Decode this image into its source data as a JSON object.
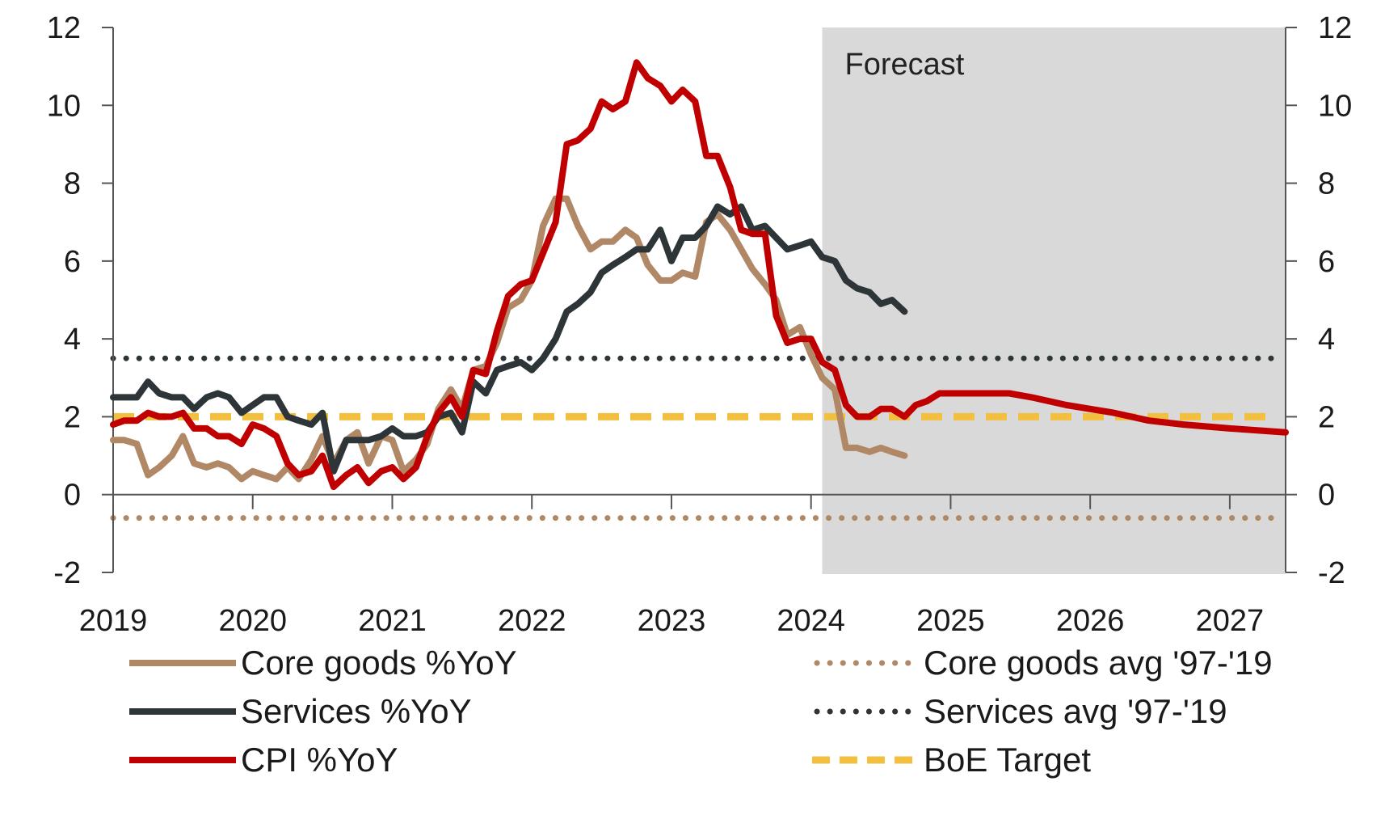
{
  "chart_data": {
    "type": "line",
    "annotation": "Forecast",
    "forecast_start": 2024.08,
    "y_left": {
      "min": -2,
      "max": 12,
      "ticks": [
        -2,
        0,
        2,
        4,
        6,
        8,
        10,
        12
      ]
    },
    "y_right": {
      "min": -2,
      "max": 12,
      "ticks": [
        -2,
        0,
        2,
        4,
        6,
        8,
        10,
        12
      ]
    },
    "x": {
      "min": 2019,
      "max": 2027.4,
      "ticks": [
        2019,
        2020,
        2021,
        2022,
        2023,
        2024,
        2025,
        2026,
        2027
      ]
    },
    "colors": {
      "core_goods": "#b08866",
      "services": "#2e3539",
      "cpi": "#c00000",
      "boe_target": "#f2bf3f",
      "forecast_shade": "#d9d9d9"
    },
    "series": [
      {
        "name": "Core goods %YoY",
        "style": "solid",
        "color": "#b08866",
        "points": [
          [
            2019.0,
            1.4
          ],
          [
            2019.08,
            1.4
          ],
          [
            2019.17,
            1.3
          ],
          [
            2019.25,
            0.5
          ],
          [
            2019.33,
            0.7
          ],
          [
            2019.42,
            1.0
          ],
          [
            2019.5,
            1.5
          ],
          [
            2019.58,
            0.8
          ],
          [
            2019.67,
            0.7
          ],
          [
            2019.75,
            0.8
          ],
          [
            2019.83,
            0.7
          ],
          [
            2019.92,
            0.4
          ],
          [
            2020.0,
            0.6
          ],
          [
            2020.08,
            0.5
          ],
          [
            2020.17,
            0.4
          ],
          [
            2020.25,
            0.7
          ],
          [
            2020.33,
            0.4
          ],
          [
            2020.42,
            0.9
          ],
          [
            2020.5,
            1.5
          ],
          [
            2020.58,
            0.8
          ],
          [
            2020.67,
            1.4
          ],
          [
            2020.75,
            1.6
          ],
          [
            2020.83,
            0.8
          ],
          [
            2020.92,
            1.5
          ],
          [
            2021.0,
            1.4
          ],
          [
            2021.08,
            0.6
          ],
          [
            2021.17,
            0.9
          ],
          [
            2021.25,
            1.3
          ],
          [
            2021.33,
            2.2
          ],
          [
            2021.42,
            2.7
          ],
          [
            2021.5,
            2.2
          ],
          [
            2021.58,
            3.2
          ],
          [
            2021.67,
            3.3
          ],
          [
            2021.75,
            3.9
          ],
          [
            2021.83,
            4.8
          ],
          [
            2021.92,
            5.0
          ],
          [
            2022.0,
            5.5
          ],
          [
            2022.08,
            6.9
          ],
          [
            2022.17,
            7.6
          ],
          [
            2022.25,
            7.6
          ],
          [
            2022.33,
            6.9
          ],
          [
            2022.42,
            6.3
          ],
          [
            2022.5,
            6.5
          ],
          [
            2022.58,
            6.5
          ],
          [
            2022.67,
            6.8
          ],
          [
            2022.75,
            6.6
          ],
          [
            2022.83,
            5.9
          ],
          [
            2022.92,
            5.5
          ],
          [
            2023.0,
            5.5
          ],
          [
            2023.08,
            5.7
          ],
          [
            2023.17,
            5.6
          ],
          [
            2023.25,
            7.0
          ],
          [
            2023.33,
            7.2
          ],
          [
            2023.42,
            6.8
          ],
          [
            2023.5,
            6.3
          ],
          [
            2023.58,
            5.8
          ],
          [
            2023.67,
            5.4
          ],
          [
            2023.75,
            5.0
          ],
          [
            2023.83,
            4.1
          ],
          [
            2023.92,
            4.3
          ],
          [
            2024.0,
            3.6
          ],
          [
            2024.08,
            3.0
          ],
          [
            2024.17,
            2.7
          ],
          [
            2024.25,
            1.2
          ],
          [
            2024.33,
            1.2
          ],
          [
            2024.42,
            1.1
          ],
          [
            2024.5,
            1.2
          ],
          [
            2024.58,
            1.1
          ],
          [
            2024.67,
            1.0
          ]
        ]
      },
      {
        "name": "Services %YoY",
        "style": "solid",
        "color": "#2e3539",
        "points": [
          [
            2019.0,
            2.5
          ],
          [
            2019.08,
            2.5
          ],
          [
            2019.17,
            2.5
          ],
          [
            2019.25,
            2.9
          ],
          [
            2019.33,
            2.6
          ],
          [
            2019.42,
            2.5
          ],
          [
            2019.5,
            2.5
          ],
          [
            2019.58,
            2.2
          ],
          [
            2019.67,
            2.5
          ],
          [
            2019.75,
            2.6
          ],
          [
            2019.83,
            2.5
          ],
          [
            2019.92,
            2.1
          ],
          [
            2020.0,
            2.3
          ],
          [
            2020.08,
            2.5
          ],
          [
            2020.17,
            2.5
          ],
          [
            2020.25,
            2.0
          ],
          [
            2020.33,
            1.9
          ],
          [
            2020.42,
            1.8
          ],
          [
            2020.5,
            2.1
          ],
          [
            2020.58,
            0.6
          ],
          [
            2020.67,
            1.4
          ],
          [
            2020.75,
            1.4
          ],
          [
            2020.83,
            1.4
          ],
          [
            2020.92,
            1.5
          ],
          [
            2021.0,
            1.7
          ],
          [
            2021.08,
            1.5
          ],
          [
            2021.17,
            1.5
          ],
          [
            2021.25,
            1.6
          ],
          [
            2021.33,
            2.0
          ],
          [
            2021.42,
            2.1
          ],
          [
            2021.5,
            1.6
          ],
          [
            2021.58,
            2.9
          ],
          [
            2021.67,
            2.6
          ],
          [
            2021.75,
            3.2
          ],
          [
            2021.83,
            3.3
          ],
          [
            2021.92,
            3.4
          ],
          [
            2022.0,
            3.2
          ],
          [
            2022.08,
            3.5
          ],
          [
            2022.17,
            4.0
          ],
          [
            2022.25,
            4.7
          ],
          [
            2022.33,
            4.9
          ],
          [
            2022.42,
            5.2
          ],
          [
            2022.5,
            5.7
          ],
          [
            2022.58,
            5.9
          ],
          [
            2022.67,
            6.1
          ],
          [
            2022.75,
            6.3
          ],
          [
            2022.83,
            6.3
          ],
          [
            2022.92,
            6.8
          ],
          [
            2023.0,
            6.0
          ],
          [
            2023.08,
            6.6
          ],
          [
            2023.17,
            6.6
          ],
          [
            2023.25,
            6.9
          ],
          [
            2023.33,
            7.4
          ],
          [
            2023.42,
            7.2
          ],
          [
            2023.5,
            7.4
          ],
          [
            2023.58,
            6.8
          ],
          [
            2023.67,
            6.9
          ],
          [
            2023.75,
            6.6
          ],
          [
            2023.83,
            6.3
          ],
          [
            2023.92,
            6.4
          ],
          [
            2024.0,
            6.5
          ],
          [
            2024.08,
            6.1
          ],
          [
            2024.17,
            6.0
          ],
          [
            2024.25,
            5.5
          ],
          [
            2024.33,
            5.3
          ],
          [
            2024.42,
            5.2
          ],
          [
            2024.5,
            4.9
          ],
          [
            2024.58,
            5.0
          ],
          [
            2024.67,
            4.7
          ]
        ]
      },
      {
        "name": "CPI %YoY",
        "style": "solid",
        "color": "#c00000",
        "points": [
          [
            2019.0,
            1.8
          ],
          [
            2019.08,
            1.9
          ],
          [
            2019.17,
            1.9
          ],
          [
            2019.25,
            2.1
          ],
          [
            2019.33,
            2.0
          ],
          [
            2019.42,
            2.0
          ],
          [
            2019.5,
            2.1
          ],
          [
            2019.58,
            1.7
          ],
          [
            2019.67,
            1.7
          ],
          [
            2019.75,
            1.5
          ],
          [
            2019.83,
            1.5
          ],
          [
            2019.92,
            1.3
          ],
          [
            2020.0,
            1.8
          ],
          [
            2020.08,
            1.7
          ],
          [
            2020.17,
            1.5
          ],
          [
            2020.25,
            0.8
          ],
          [
            2020.33,
            0.5
          ],
          [
            2020.42,
            0.6
          ],
          [
            2020.5,
            1.0
          ],
          [
            2020.58,
            0.2
          ],
          [
            2020.67,
            0.5
          ],
          [
            2020.75,
            0.7
          ],
          [
            2020.83,
            0.3
          ],
          [
            2020.92,
            0.6
          ],
          [
            2021.0,
            0.7
          ],
          [
            2021.08,
            0.4
          ],
          [
            2021.17,
            0.7
          ],
          [
            2021.25,
            1.5
          ],
          [
            2021.33,
            2.1
          ],
          [
            2021.42,
            2.5
          ],
          [
            2021.5,
            2.0
          ],
          [
            2021.58,
            3.2
          ],
          [
            2021.67,
            3.1
          ],
          [
            2021.75,
            4.2
          ],
          [
            2021.83,
            5.1
          ],
          [
            2021.92,
            5.4
          ],
          [
            2022.0,
            5.5
          ],
          [
            2022.08,
            6.2
          ],
          [
            2022.17,
            7.0
          ],
          [
            2022.25,
            9.0
          ],
          [
            2022.33,
            9.1
          ],
          [
            2022.42,
            9.4
          ],
          [
            2022.5,
            10.1
          ],
          [
            2022.58,
            9.9
          ],
          [
            2022.67,
            10.1
          ],
          [
            2022.75,
            11.1
          ],
          [
            2022.83,
            10.7
          ],
          [
            2022.92,
            10.5
          ],
          [
            2023.0,
            10.1
          ],
          [
            2023.08,
            10.4
          ],
          [
            2023.17,
            10.1
          ],
          [
            2023.25,
            8.7
          ],
          [
            2023.33,
            8.7
          ],
          [
            2023.42,
            7.9
          ],
          [
            2023.5,
            6.8
          ],
          [
            2023.58,
            6.7
          ],
          [
            2023.67,
            6.7
          ],
          [
            2023.75,
            4.6
          ],
          [
            2023.83,
            3.9
          ],
          [
            2023.92,
            4.0
          ],
          [
            2024.0,
            4.0
          ],
          [
            2024.08,
            3.4
          ],
          [
            2024.17,
            3.2
          ],
          [
            2024.25,
            2.3
          ],
          [
            2024.33,
            2.0
          ],
          [
            2024.42,
            2.0
          ],
          [
            2024.5,
            2.2
          ],
          [
            2024.58,
            2.2
          ],
          [
            2024.67,
            2.0
          ],
          [
            2024.75,
            2.3
          ],
          [
            2024.83,
            2.4
          ],
          [
            2024.92,
            2.6
          ],
          [
            2025.0,
            2.6
          ],
          [
            2025.42,
            2.6
          ],
          [
            2025.58,
            2.5
          ],
          [
            2025.83,
            2.3
          ],
          [
            2026.0,
            2.2
          ],
          [
            2026.17,
            2.1
          ],
          [
            2026.42,
            1.9
          ],
          [
            2026.67,
            1.8
          ],
          [
            2027.0,
            1.7
          ],
          [
            2027.4,
            1.6
          ]
        ]
      },
      {
        "name": "Core goods avg '97-'19",
        "style": "dotted",
        "color": "#b08866",
        "points": [
          [
            2019.0,
            -0.6
          ],
          [
            2027.3,
            -0.6
          ]
        ]
      },
      {
        "name": "Services avg '97-'19",
        "style": "dotted",
        "color": "#2e3539",
        "points": [
          [
            2019.0,
            3.5
          ],
          [
            2027.3,
            3.5
          ]
        ]
      },
      {
        "name": "BoE Target",
        "style": "dashed",
        "color": "#f2bf3f",
        "points": [
          [
            2019.0,
            2.0
          ],
          [
            2027.3,
            2.0
          ]
        ]
      }
    ],
    "legend": [
      {
        "label": "Core goods %YoY",
        "style": "solid",
        "color": "#b08866"
      },
      {
        "label": "Services %YoY",
        "style": "solid",
        "color": "#2e3539"
      },
      {
        "label": "CPI %YoY",
        "style": "solid",
        "color": "#c00000"
      },
      {
        "label": "Core goods avg '97-'19",
        "style": "dotted",
        "color": "#b08866"
      },
      {
        "label": "Services avg '97-'19",
        "style": "dotted",
        "color": "#2e3539"
      },
      {
        "label": "BoE Target",
        "style": "dashed",
        "color": "#f2bf3f"
      }
    ]
  }
}
